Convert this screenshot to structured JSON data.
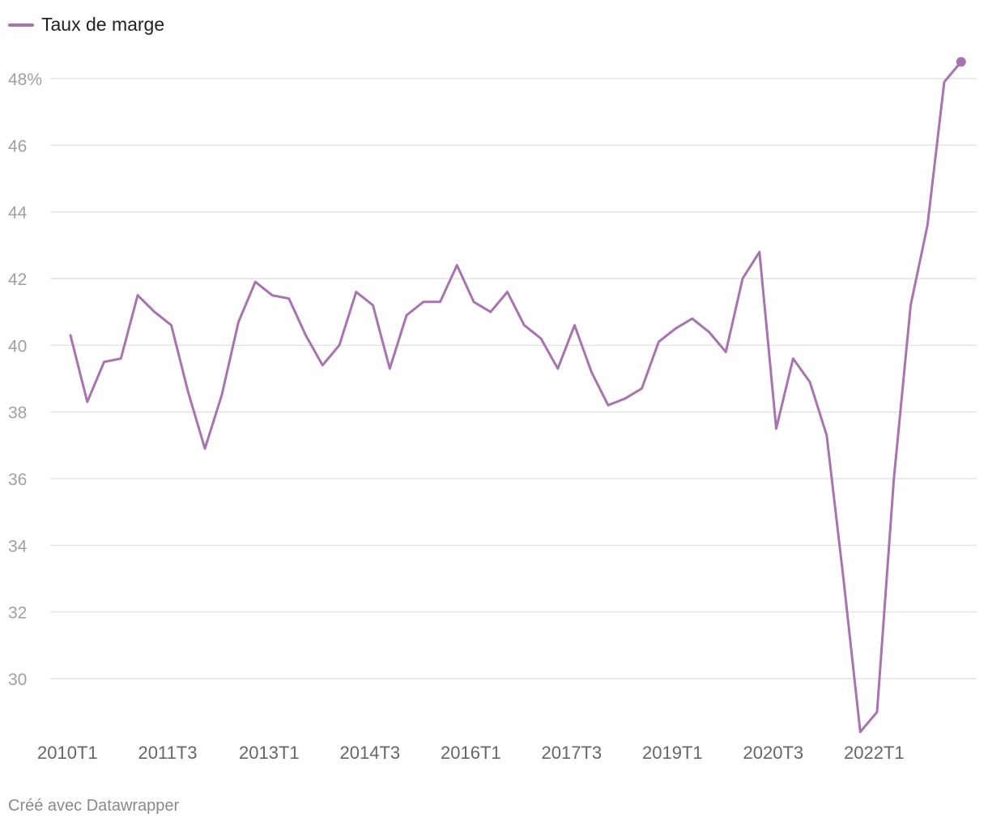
{
  "chart_data": {
    "type": "line",
    "legend": [
      {
        "name": "Taux de marge",
        "color": "#a873b0"
      }
    ],
    "y_ticks": [
      {
        "value": 48,
        "label": "48%"
      },
      {
        "value": 46,
        "label": "46"
      },
      {
        "value": 44,
        "label": "44"
      },
      {
        "value": 42,
        "label": "42"
      },
      {
        "value": 40,
        "label": "40"
      },
      {
        "value": 38,
        "label": "38"
      },
      {
        "value": 36,
        "label": "36"
      },
      {
        "value": 34,
        "label": "34"
      },
      {
        "value": 32,
        "label": "32"
      },
      {
        "value": 30,
        "label": "30"
      }
    ],
    "x_ticks": [
      {
        "index": 0,
        "label": "2010T1"
      },
      {
        "index": 6,
        "label": "2011T3"
      },
      {
        "index": 12,
        "label": "2013T1"
      },
      {
        "index": 18,
        "label": "2014T3"
      },
      {
        "index": 24,
        "label": "2016T1"
      },
      {
        "index": 30,
        "label": "2017T3"
      },
      {
        "index": 36,
        "label": "2019T1"
      },
      {
        "index": 42,
        "label": "2020T3"
      },
      {
        "index": 48,
        "label": "2022T1"
      }
    ],
    "ylim": [
      28.4,
      48.6
    ],
    "series": [
      {
        "name": "Taux de marge",
        "color": "#a873b0",
        "values": [
          40.3,
          38.3,
          39.5,
          39.6,
          41.5,
          41.0,
          40.6,
          38.6,
          36.9,
          38.5,
          40.7,
          41.9,
          41.5,
          41.4,
          40.3,
          39.4,
          40.0,
          41.6,
          41.2,
          39.3,
          40.9,
          41.3,
          41.3,
          42.4,
          41.3,
          41.0,
          41.6,
          40.6,
          40.2,
          39.3,
          40.6,
          39.2,
          38.2,
          38.4,
          38.7,
          40.1,
          40.5,
          40.8,
          40.4,
          39.8,
          42.0,
          42.8,
          37.5,
          39.6,
          38.9,
          37.3,
          33.0,
          28.4,
          29.0,
          36.0,
          41.2,
          43.6,
          47.9,
          48.5
        ]
      }
    ]
  },
  "footer": {
    "credit": "Créé avec Datawrapper"
  }
}
